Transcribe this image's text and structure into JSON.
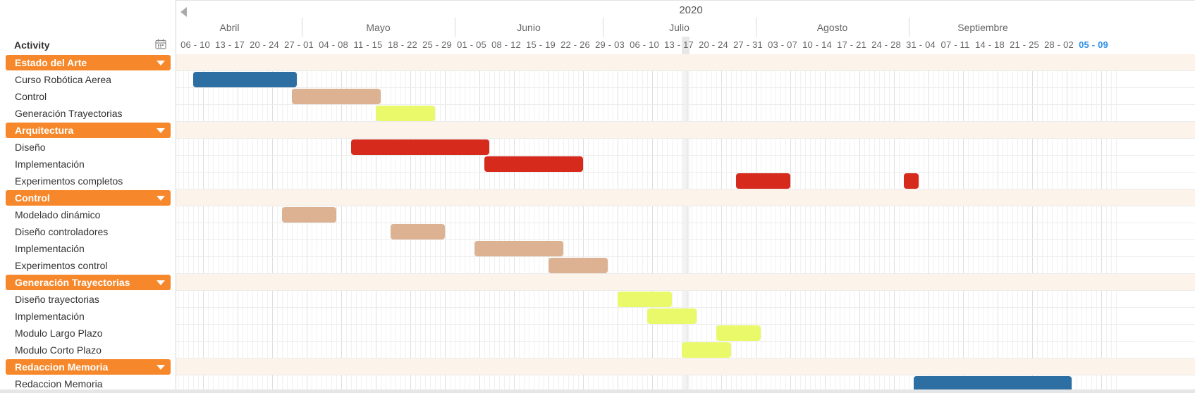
{
  "header": {
    "activity_label": "Activity",
    "year": "2020",
    "months": [
      "Abril",
      "Mayo",
      "Junio",
      "Julio",
      "Agosto",
      "Septiembre"
    ],
    "weeks": [
      "06 - 10",
      "13 - 17",
      "20 - 24",
      "27 - 01",
      "04 - 08",
      "11 - 15",
      "18 - 22",
      "25 - 29",
      "01 - 05",
      "08 - 12",
      "15 - 19",
      "22 - 26",
      "29 - 03",
      "06 - 10",
      "13 - 17",
      "20 - 24",
      "27 - 31",
      "03 - 07",
      "10 - 14",
      "17 - 21",
      "24 - 28",
      "31 - 04",
      "07 - 11",
      "14 - 18",
      "21 - 25",
      "28 - 02",
      "05 - 09"
    ],
    "current_week_index": 26
  },
  "rows": [
    {
      "type": "group",
      "label": "Estado del Arte"
    },
    {
      "type": "task",
      "label": "Curso Robótica Aerea",
      "bar": {
        "start": "2020-04-09",
        "end": "2020-04-30",
        "color": "#2d6ea3"
      }
    },
    {
      "type": "task",
      "label": "Control",
      "bar": {
        "start": "2020-04-29",
        "end": "2020-05-17",
        "color": "#dcb293"
      }
    },
    {
      "type": "task",
      "label": "Generación Trayectorias",
      "bar": {
        "start": "2020-05-16",
        "end": "2020-05-28",
        "color": "#e9f969"
      }
    },
    {
      "type": "group",
      "label": "Arquitectura"
    },
    {
      "type": "task",
      "label": "Diseño",
      "bar": {
        "start": "2020-05-11",
        "end": "2020-06-08",
        "color": "#d62a1d"
      }
    },
    {
      "type": "task",
      "label": "Implementación",
      "bar": {
        "start": "2020-06-07",
        "end": "2020-06-27",
        "color": "#d62a1d"
      }
    },
    {
      "type": "task",
      "label": "Experimentos completos",
      "bar": {
        "start": "2020-07-28",
        "end": "2020-08-08",
        "color": "#d62a1d"
      },
      "bar2": {
        "start": "2020-08-31",
        "end": "2020-09-03",
        "color": "#d62a1d"
      }
    },
    {
      "type": "group",
      "label": "Control"
    },
    {
      "type": "task",
      "label": "Modelado dinámico",
      "bar": {
        "start": "2020-04-27",
        "end": "2020-05-08",
        "color": "#dcb293"
      }
    },
    {
      "type": "task",
      "label": "Diseño controladores",
      "bar": {
        "start": "2020-05-19",
        "end": "2020-05-30",
        "color": "#dcb293"
      }
    },
    {
      "type": "task",
      "label": "Implementación",
      "bar": {
        "start": "2020-06-05",
        "end": "2020-06-23",
        "color": "#dcb293"
      }
    },
    {
      "type": "task",
      "label": "Experimentos control",
      "bar": {
        "start": "2020-06-20",
        "end": "2020-07-02",
        "color": "#dcb293"
      }
    },
    {
      "type": "group",
      "label": "Generación Trayectorias"
    },
    {
      "type": "task",
      "label": "Diseño trayectorias",
      "bar": {
        "start": "2020-07-04",
        "end": "2020-07-15",
        "color": "#e9f969"
      }
    },
    {
      "type": "task",
      "label": "Implementación",
      "bar": {
        "start": "2020-07-10",
        "end": "2020-07-20",
        "color": "#e9f969"
      }
    },
    {
      "type": "task",
      "label": "Modulo Largo Plazo",
      "bar": {
        "start": "2020-07-24",
        "end": "2020-08-02",
        "color": "#e9f969"
      }
    },
    {
      "type": "task",
      "label": "Modulo Corto Plazo",
      "bar": {
        "start": "2020-07-17",
        "end": "2020-07-27",
        "color": "#e9f969"
      }
    },
    {
      "type": "group",
      "label": "Redaccion Memoria"
    },
    {
      "type": "task",
      "label": "Redaccion Memoria",
      "bar": {
        "start": "2020-09-02",
        "end": "2020-10-04",
        "color": "#2d6ea3"
      }
    }
  ]
}
